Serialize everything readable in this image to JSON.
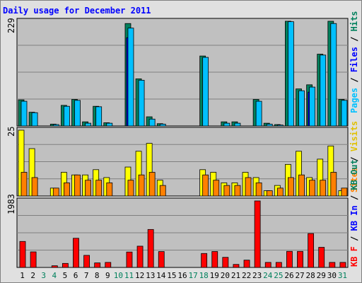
{
  "chart_data": [
    {
      "type": "bar",
      "title": "Daily usage for December 2011",
      "panel": "top",
      "ymax_label": "229",
      "ylim": [
        0,
        229
      ],
      "grid": true,
      "legend_placement": "right",
      "legend": [
        "Pages",
        "Files",
        "Hits"
      ],
      "x": [
        "1",
        "2",
        "3",
        "4",
        "5",
        "6",
        "7",
        "8",
        "9",
        "10",
        "11",
        "12",
        "13",
        "14",
        "15",
        "16",
        "17",
        "18",
        "19",
        "20",
        "21",
        "22",
        "23",
        "24",
        "25",
        "26",
        "27",
        "28",
        "29",
        "30",
        "31"
      ],
      "x_weekend": [
        3,
        4,
        10,
        11,
        17,
        18,
        24,
        25,
        31
      ],
      "series": [
        {
          "name": "Hits",
          "values": [
            57,
            30,
            0,
            4,
            45,
            58,
            9,
            43,
            7,
            0,
            224,
            103,
            20,
            5,
            0,
            0,
            0,
            153,
            0,
            9,
            9,
            0,
            58,
            6,
            3,
            229,
            81,
            90,
            157,
            229,
            58
          ]
        },
        {
          "name": "Files",
          "values": [
            0,
            0,
            0,
            0,
            0,
            0,
            0,
            0,
            0,
            0,
            193,
            0,
            0,
            0,
            0,
            0,
            0,
            0,
            0,
            0,
            0,
            0,
            0,
            0,
            0,
            0,
            0,
            74,
            0,
            0,
            0
          ]
        },
        {
          "name": "Pages",
          "values": [
            54,
            29,
            0,
            3,
            43,
            56,
            6,
            42,
            6,
            0,
            214,
            100,
            15,
            4,
            0,
            0,
            0,
            150,
            0,
            6,
            6,
            0,
            54,
            4,
            2,
            228,
            77,
            85,
            155,
            224,
            56
          ]
        }
      ]
    },
    {
      "type": "bar",
      "panel": "middle",
      "ymax_label": "25",
      "ylim": [
        0,
        25
      ],
      "grid": true,
      "legend_placement": "right",
      "legend": [
        "Visits",
        "Sites"
      ],
      "x": [
        "1",
        "2",
        "3",
        "4",
        "5",
        "6",
        "7",
        "8",
        "9",
        "10",
        "11",
        "12",
        "13",
        "14",
        "15",
        "16",
        "17",
        "18",
        "19",
        "20",
        "21",
        "22",
        "23",
        "24",
        "25",
        "26",
        "27",
        "28",
        "29",
        "30",
        "31"
      ],
      "series": [
        {
          "name": "Visits",
          "values": [
            25,
            18,
            0,
            3,
            9,
            8,
            8,
            10,
            7,
            0,
            11,
            17,
            20,
            6,
            0,
            0,
            0,
            10,
            9,
            5,
            5,
            9,
            7,
            2,
            4,
            12,
            17,
            7,
            14,
            19,
            2
          ]
        },
        {
          "name": "Sites",
          "values": [
            9,
            7,
            0,
            3,
            5,
            8,
            6,
            6,
            5,
            0,
            6,
            8,
            9,
            4,
            0,
            0,
            0,
            8,
            6,
            4,
            4,
            7,
            5,
            2,
            3,
            7,
            8,
            6,
            6,
            9,
            3
          ]
        }
      ]
    },
    {
      "type": "bar",
      "panel": "bottom",
      "ymax_label": "1983",
      "ylim": [
        0,
        1983
      ],
      "grid": true,
      "legend_placement": "right",
      "legend": [
        "KB F",
        "KB In",
        "KB Out"
      ],
      "x": [
        "1",
        "2",
        "3",
        "4",
        "5",
        "6",
        "7",
        "8",
        "9",
        "10",
        "11",
        "12",
        "13",
        "14",
        "15",
        "16",
        "17",
        "18",
        "19",
        "20",
        "21",
        "22",
        "23",
        "24",
        "25",
        "26",
        "27",
        "28",
        "29",
        "30",
        "31"
      ],
      "series": [
        {
          "name": "KB F",
          "values": [
            775,
            464,
            0,
            50,
            120,
            870,
            360,
            135,
            150,
            0,
            460,
            634,
            1132,
            474,
            0,
            0,
            0,
            416,
            475,
            301,
            90,
            218,
            1983,
            150,
            150,
            480,
            479,
            1010,
            600,
            150,
            150
          ]
        }
      ]
    }
  ],
  "colors": {
    "hits": "#00805c",
    "files": "#0000ff",
    "pages": "#00c0ff",
    "visits": "#ffff00",
    "sites": "#ff8000",
    "kbf": "#ff0000",
    "kbin": "#0000ff",
    "kbout": "#00805c",
    "panel_bg": "#c0c0c0",
    "frame_bg": "#e0e0e0",
    "title": "#0000ff",
    "weekday_label": "#000000",
    "weekend_label": "#00805c"
  }
}
